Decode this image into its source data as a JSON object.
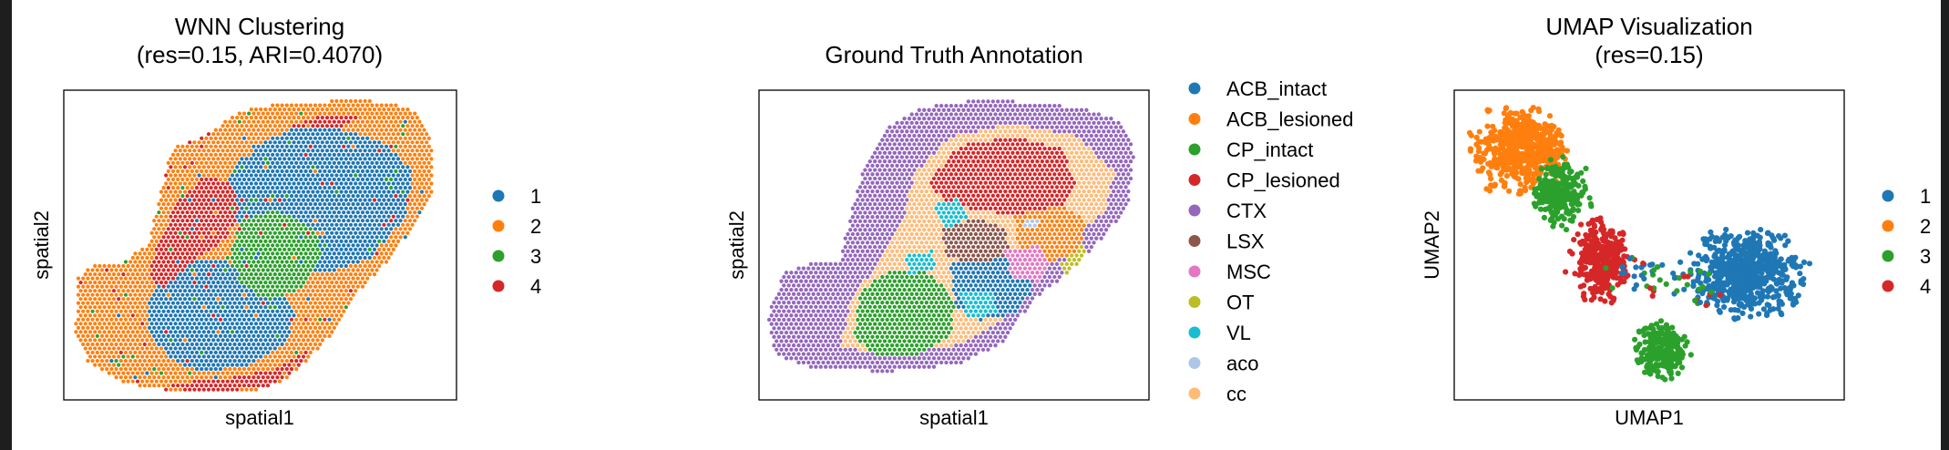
{
  "figure": {
    "background": "#ffffff",
    "frame_color": "#1e1e1e"
  },
  "chart_data": [
    {
      "type": "scatter",
      "subtype": "spatial",
      "title": "WNN Clustering",
      "subtitle": "(res=0.15, ARI=0.4070)",
      "xlabel": "spatial1",
      "ylabel": "spatial2",
      "grid": false,
      "legend_position": "right",
      "legend": [
        {
          "label": "1",
          "color": "#1f77b4"
        },
        {
          "label": "2",
          "color": "#ff7f0e"
        },
        {
          "label": "3",
          "color": "#2ca02c"
        },
        {
          "label": "4",
          "color": "#d62728"
        }
      ]
    },
    {
      "type": "scatter",
      "subtype": "spatial",
      "title": "Ground Truth Annotation",
      "subtitle": "",
      "xlabel": "spatial1",
      "ylabel": "spatial2",
      "grid": false,
      "legend_position": "right",
      "legend": [
        {
          "label": "ACB_intact",
          "color": "#1f77b4"
        },
        {
          "label": "ACB_lesioned",
          "color": "#ff7f0e"
        },
        {
          "label": "CP_intact",
          "color": "#2ca02c"
        },
        {
          "label": "CP_lesioned",
          "color": "#d62728"
        },
        {
          "label": "CTX",
          "color": "#9467bd"
        },
        {
          "label": "LSX",
          "color": "#8c564b"
        },
        {
          "label": "MSC",
          "color": "#e377c2"
        },
        {
          "label": "OT",
          "color": "#bcbd22"
        },
        {
          "label": "VL",
          "color": "#17becf"
        },
        {
          "label": "aco",
          "color": "#aec7e8"
        },
        {
          "label": "cc",
          "color": "#ffbb78"
        }
      ]
    },
    {
      "type": "scatter",
      "subtype": "umap",
      "title": "UMAP Visualization",
      "subtitle": "(res=0.15)",
      "xlabel": "UMAP1",
      "ylabel": "UMAP2",
      "grid": false,
      "legend_position": "right",
      "legend": [
        {
          "label": "1",
          "color": "#1f77b4"
        },
        {
          "label": "2",
          "color": "#ff7f0e"
        },
        {
          "label": "3",
          "color": "#2ca02c"
        },
        {
          "label": "4",
          "color": "#d62728"
        }
      ]
    }
  ]
}
